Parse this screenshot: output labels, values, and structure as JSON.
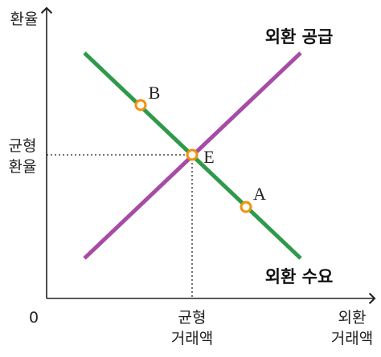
{
  "axes": {
    "y_label": "환율",
    "x_label": [
      "외환",
      "거래액"
    ],
    "origin": "0"
  },
  "equilibrium": {
    "rate_label": [
      "균형",
      "환율"
    ],
    "quantity_label": [
      "균형",
      "거래액"
    ]
  },
  "curves": {
    "supply": "외환 공급",
    "demand": "외환 수요"
  },
  "points": {
    "B": "B",
    "E": "E",
    "A": "A"
  }
}
